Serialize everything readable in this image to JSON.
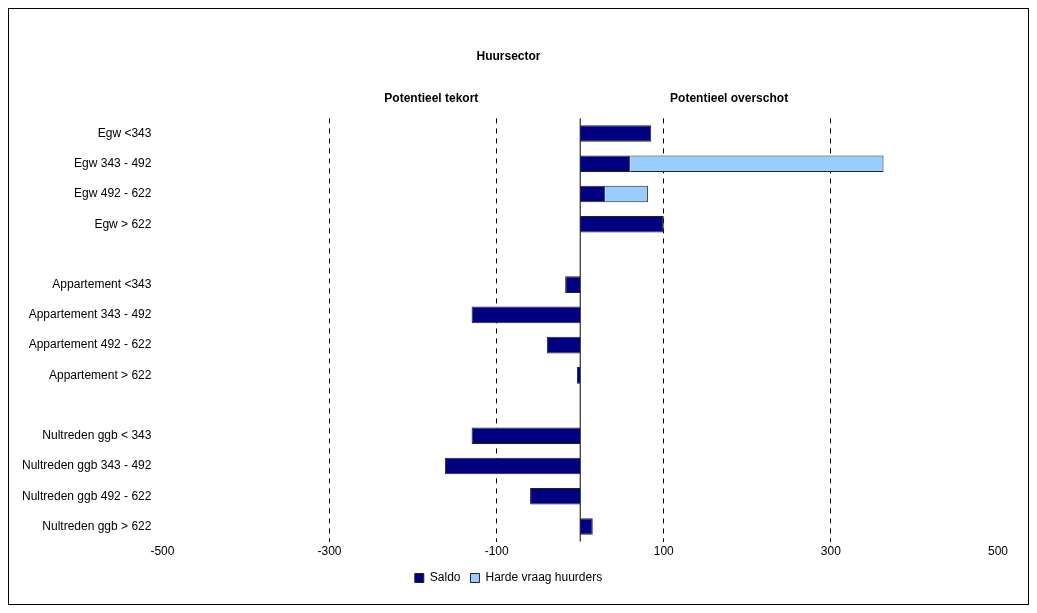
{
  "chart_data": {
    "type": "bar",
    "orientation": "horizontal",
    "stacked": true,
    "title": "Huursector",
    "annotations": [
      "Potentieel tekort",
      "Potentieel overschot"
    ],
    "categories": [
      "Egw <343",
      "Egw 343 - 492",
      "Egw 492 - 622",
      "Egw > 622",
      null,
      "Appartement <343",
      "Appartement 343 - 492",
      "Appartement 492 - 622",
      "Appartement > 622",
      null,
      "Nultreden ggb < 343",
      "Nultreden ggb 343 - 492",
      "Nultreden ggb 492 - 622",
      "Nultreden ggb > 622"
    ],
    "series": [
      {
        "name": "Saldo",
        "color": "#000080",
        "values": [
          85,
          60,
          30,
          100,
          null,
          -18,
          -130,
          -40,
          -4,
          null,
          -130,
          -162,
          -60,
          15
        ]
      },
      {
        "name": "Harde vraag huurders",
        "color": "#99ccff",
        "values": [
          null,
          303,
          51,
          null,
          null,
          null,
          null,
          null,
          null,
          null,
          null,
          null,
          null,
          null
        ]
      }
    ],
    "xlim": [
      -500,
      500
    ],
    "xticks": [
      -500,
      -300,
      -100,
      100,
      300,
      500
    ],
    "grid": "x",
    "line_style": "dashed",
    "legend": "bottom"
  }
}
